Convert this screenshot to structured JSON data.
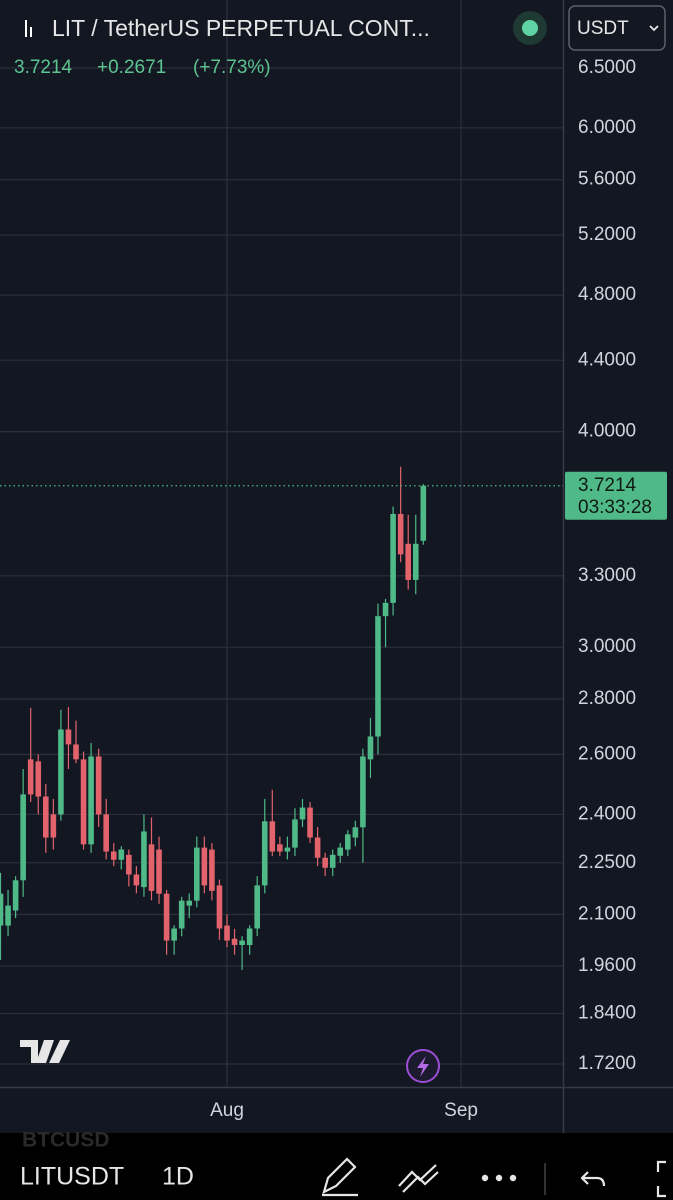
{
  "header": {
    "symbol": "LIT / TetherUS PERPETUAL CONT...",
    "currency": "USDT",
    "change": {
      "value": 0.2671,
      "label": "+0.2671"
    },
    "change_pct": {
      "value": 7.73,
      "label": "(+7.73%)"
    }
  },
  "chart_data": {
    "type": "candlestick",
    "log_scale": true,
    "grid": true,
    "up_color": "#4fb987",
    "down_color": "#e2636b",
    "last_price": 3.7214,
    "countdown": "03:33:28",
    "categories": [
      null,
      null,
      null,
      null,
      null,
      null,
      null,
      null,
      null,
      null,
      null,
      null,
      null,
      null,
      null,
      null,
      null,
      null,
      null,
      null,
      null,
      null,
      null,
      null,
      null,
      null,
      null,
      null,
      null,
      null,
      "Aug",
      null,
      null,
      null,
      null,
      null,
      null,
      null,
      null,
      null,
      null,
      null,
      null,
      null,
      null,
      null,
      null,
      null,
      null,
      null,
      null,
      null,
      null,
      null,
      null,
      null,
      null,
      null,
      null,
      null,
      null,
      "Sep",
      null,
      null,
      null,
      null,
      null,
      null,
      null,
      null,
      null,
      null,
      null,
      null,
      null
    ],
    "open": [
      2.069,
      2.069,
      2.111,
      2.198,
      2.583,
      2.576,
      2.458,
      2.4,
      2.4,
      2.688,
      2.635,
      2.583,
      2.306,
      2.593,
      2.4,
      2.284,
      2.259,
      2.274,
      2.215,
      2.178,
      2.306,
      2.29,
      2.159,
      2.028,
      2.061,
      2.125,
      2.139,
      2.296,
      2.29,
      2.183,
      2.069,
      2.033,
      2.016,
      2.016,
      2.061,
      2.183,
      2.378,
      2.306,
      2.284,
      2.296,
      2.384,
      2.422,
      2.327,
      2.265,
      2.235,
      2.271,
      2.29,
      2.327,
      2.359,
      2.583,
      2.663,
      3.127,
      3.183,
      3.584,
      3.444,
      3.282,
      3.458,
      null,
      null,
      null,
      null,
      null,
      null,
      null,
      null,
      null,
      null,
      null,
      null,
      null,
      null,
      null,
      null,
      null,
      null
    ],
    "high": [
      2.22,
      2.17,
      2.21,
      2.55,
      2.767,
      2.6,
      2.5,
      2.45,
      2.76,
      2.77,
      2.72,
      2.61,
      2.64,
      2.62,
      2.45,
      2.31,
      2.3,
      2.29,
      2.24,
      2.4,
      2.39,
      2.33,
      2.17,
      2.07,
      2.15,
      2.16,
      2.33,
      2.33,
      2.31,
      2.2,
      2.1,
      2.06,
      2.04,
      2.07,
      2.21,
      2.45,
      2.48,
      2.33,
      2.33,
      2.42,
      2.45,
      2.44,
      2.36,
      2.28,
      2.29,
      2.31,
      2.35,
      2.38,
      2.62,
      2.73,
      3.18,
      3.2,
      3.62,
      3.817,
      3.58,
      3.58,
      3.73,
      null,
      null,
      null,
      null,
      null,
      null,
      null,
      null,
      null,
      null,
      null,
      null,
      null,
      null,
      null,
      null,
      null,
      null
    ],
    "low": [
      1.976,
      2.04,
      2.09,
      2.15,
      2.44,
      2.4,
      2.28,
      2.29,
      2.38,
      2.55,
      2.57,
      2.29,
      2.28,
      2.36,
      2.26,
      2.24,
      2.23,
      2.18,
      2.16,
      2.15,
      2.14,
      2.13,
      1.99,
      1.99,
      2.04,
      2.09,
      2.12,
      2.16,
      2.14,
      2.03,
      2.01,
      1.99,
      1.95,
      1.99,
      2.04,
      2.16,
      2.27,
      2.27,
      2.26,
      2.27,
      2.36,
      2.31,
      2.24,
      2.21,
      2.21,
      2.25,
      2.27,
      2.3,
      2.25,
      2.52,
      2.6,
      3.0,
      3.13,
      3.36,
      3.24,
      3.22,
      3.44,
      null,
      null,
      null,
      null,
      null,
      null,
      null,
      null,
      null,
      null,
      null,
      null,
      null,
      null,
      null,
      null,
      null,
      null
    ],
    "close": [
      2.159,
      2.125,
      2.198,
      2.465,
      2.465,
      2.458,
      2.327,
      2.327,
      2.688,
      2.635,
      2.583,
      2.306,
      2.593,
      2.4,
      2.284,
      2.259,
      2.29,
      2.215,
      2.183,
      2.346,
      2.167,
      2.159,
      2.028,
      2.061,
      2.139,
      2.139,
      2.296,
      2.183,
      2.167,
      2.061,
      2.028,
      2.016,
      2.028,
      2.061,
      2.183,
      2.378,
      2.284,
      2.284,
      2.296,
      2.384,
      2.422,
      2.327,
      2.265,
      2.235,
      2.274,
      2.296,
      2.337,
      2.359,
      2.593,
      2.663,
      3.127,
      3.183,
      3.584,
      3.396,
      3.282,
      3.444,
      3.7214,
      null,
      null,
      null,
      null,
      null,
      null,
      null,
      null,
      null,
      null,
      null,
      null,
      null,
      null,
      null,
      null,
      null,
      null
    ],
    "ylim": [
      1.668,
      7.117
    ],
    "yticks": [
      {
        "value": 6.5,
        "label": "6.5000"
      },
      {
        "value": 6,
        "label": "6.0000"
      },
      {
        "value": 5.6,
        "label": "5.6000"
      },
      {
        "value": 5.2,
        "label": "5.2000"
      },
      {
        "value": 4.8,
        "label": "4.8000"
      },
      {
        "value": 4.4,
        "label": "4.4000"
      },
      {
        "value": 4,
        "label": "4.0000"
      },
      {
        "value": 3.3,
        "label": "3.3000"
      },
      {
        "value": 3,
        "label": "3.0000"
      },
      {
        "value": 2.8,
        "label": "2.8000"
      },
      {
        "value": 2.6,
        "label": "2.6000"
      },
      {
        "value": 2.4,
        "label": "2.4000"
      },
      {
        "value": 2.25,
        "label": "2.2500"
      },
      {
        "value": 2.1,
        "label": "2.1000"
      },
      {
        "value": 1.96,
        "label": "1.9600"
      },
      {
        "value": 1.84,
        "label": "1.8400"
      },
      {
        "value": 1.72,
        "label": "1.7200"
      }
    ]
  },
  "toolbar": {
    "ghost_symbol": "BTCUSD",
    "symbol": "LITUSDT",
    "interval": "1D"
  }
}
